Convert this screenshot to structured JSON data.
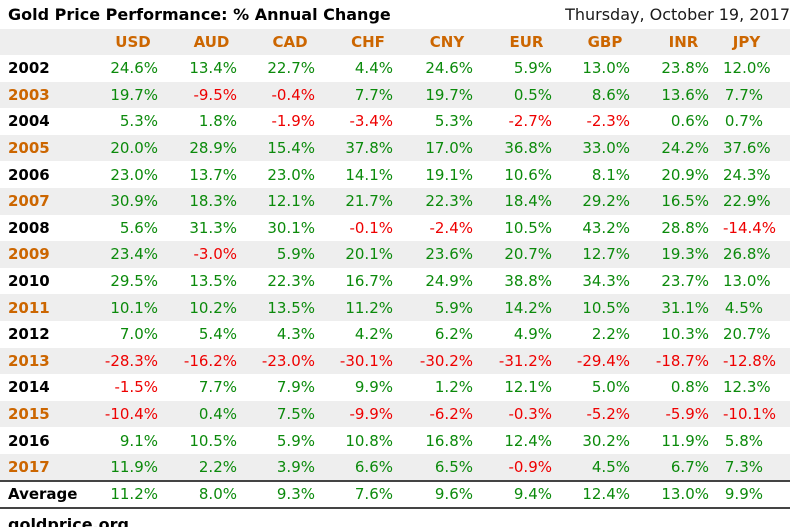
{
  "source": "goldprice.org",
  "colors": {
    "positive": "#0b8a0b",
    "negative": "#ee0000",
    "accent_orange": "#cc6600",
    "stripe": "#eeeeee",
    "header_bg": "#eeeeee",
    "border": "#444444"
  },
  "chart_data": {
    "type": "table",
    "title": "Gold Price Performance: % Annual Change",
    "date": "Thursday, October 19, 2017",
    "unit": "%",
    "columns": [
      "USD",
      "AUD",
      "CAD",
      "CHF",
      "CNY",
      "EUR",
      "GBP",
      "INR",
      "JPY"
    ],
    "rows": [
      {
        "label": "2002",
        "values": [
          24.6,
          13.4,
          22.7,
          4.4,
          24.6,
          5.9,
          13.0,
          23.8,
          12.0
        ]
      },
      {
        "label": "2003",
        "values": [
          19.7,
          -9.5,
          -0.4,
          7.7,
          19.7,
          0.5,
          8.6,
          13.6,
          7.7
        ]
      },
      {
        "label": "2004",
        "values": [
          5.3,
          1.8,
          -1.9,
          -3.4,
          5.3,
          -2.7,
          -2.3,
          0.6,
          0.7
        ]
      },
      {
        "label": "2005",
        "values": [
          20.0,
          28.9,
          15.4,
          37.8,
          17.0,
          36.8,
          33.0,
          24.2,
          37.6
        ]
      },
      {
        "label": "2006",
        "values": [
          23.0,
          13.7,
          23.0,
          14.1,
          19.1,
          10.6,
          8.1,
          20.9,
          24.3
        ]
      },
      {
        "label": "2007",
        "values": [
          30.9,
          18.3,
          12.1,
          21.7,
          22.3,
          18.4,
          29.2,
          16.5,
          22.9
        ]
      },
      {
        "label": "2008",
        "values": [
          5.6,
          31.3,
          30.1,
          -0.1,
          -2.4,
          10.5,
          43.2,
          28.8,
          -14.4
        ]
      },
      {
        "label": "2009",
        "values": [
          23.4,
          -3.0,
          5.9,
          20.1,
          23.6,
          20.7,
          12.7,
          19.3,
          26.8
        ]
      },
      {
        "label": "2010",
        "values": [
          29.5,
          13.5,
          22.3,
          16.7,
          24.9,
          38.8,
          34.3,
          23.7,
          13.0
        ]
      },
      {
        "label": "2011",
        "values": [
          10.1,
          10.2,
          13.5,
          11.2,
          5.9,
          14.2,
          10.5,
          31.1,
          4.5
        ]
      },
      {
        "label": "2012",
        "values": [
          7.0,
          5.4,
          4.3,
          4.2,
          6.2,
          4.9,
          2.2,
          10.3,
          20.7
        ]
      },
      {
        "label": "2013",
        "values": [
          -28.3,
          -16.2,
          -23.0,
          -30.1,
          -30.2,
          -31.2,
          -29.4,
          -18.7,
          -12.8
        ]
      },
      {
        "label": "2014",
        "values": [
          -1.5,
          7.7,
          7.9,
          9.9,
          1.2,
          12.1,
          5.0,
          0.8,
          12.3
        ]
      },
      {
        "label": "2015",
        "values": [
          -10.4,
          0.4,
          7.5,
          -9.9,
          -6.2,
          -0.3,
          -5.2,
          -5.9,
          -10.1
        ]
      },
      {
        "label": "2016",
        "values": [
          9.1,
          10.5,
          5.9,
          10.8,
          16.8,
          12.4,
          30.2,
          11.9,
          5.8
        ]
      },
      {
        "label": "2017",
        "values": [
          11.9,
          2.2,
          3.9,
          6.6,
          6.5,
          -0.9,
          4.5,
          6.7,
          7.3
        ]
      }
    ],
    "average": {
      "label": "Average",
      "values": [
        11.2,
        8.0,
        9.3,
        7.6,
        9.6,
        9.4,
        12.4,
        13.0,
        9.9
      ]
    }
  }
}
